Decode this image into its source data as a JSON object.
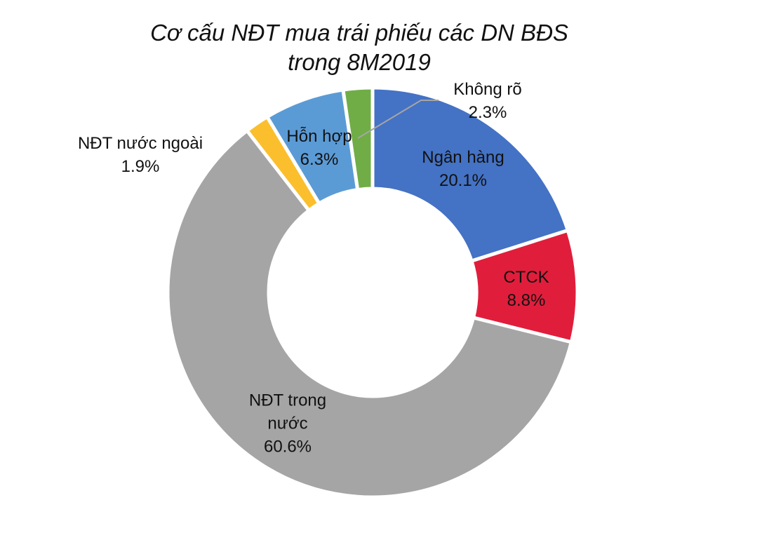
{
  "chart_data": {
    "type": "pie",
    "title": "Cơ cấu NĐT mua trái phiếu các DN BĐS trong 8M2019",
    "categories": [
      "Ngân hàng",
      "CTCK",
      "NĐT trong nước",
      "NĐT nước ngoài",
      "Hỗn hợp",
      "Không rõ"
    ],
    "values": [
      20.1,
      8.8,
      60.6,
      1.9,
      6.3,
      2.3
    ],
    "value_labels": [
      "20.1%",
      "8.8%",
      "60.6%",
      "1.9%",
      "6.3%",
      "2.3%"
    ],
    "colors": [
      "#4472c4",
      "#e01e3c",
      "#a5a5a5",
      "#fbbf2d",
      "#5b9bd5",
      "#70ad47"
    ]
  }
}
